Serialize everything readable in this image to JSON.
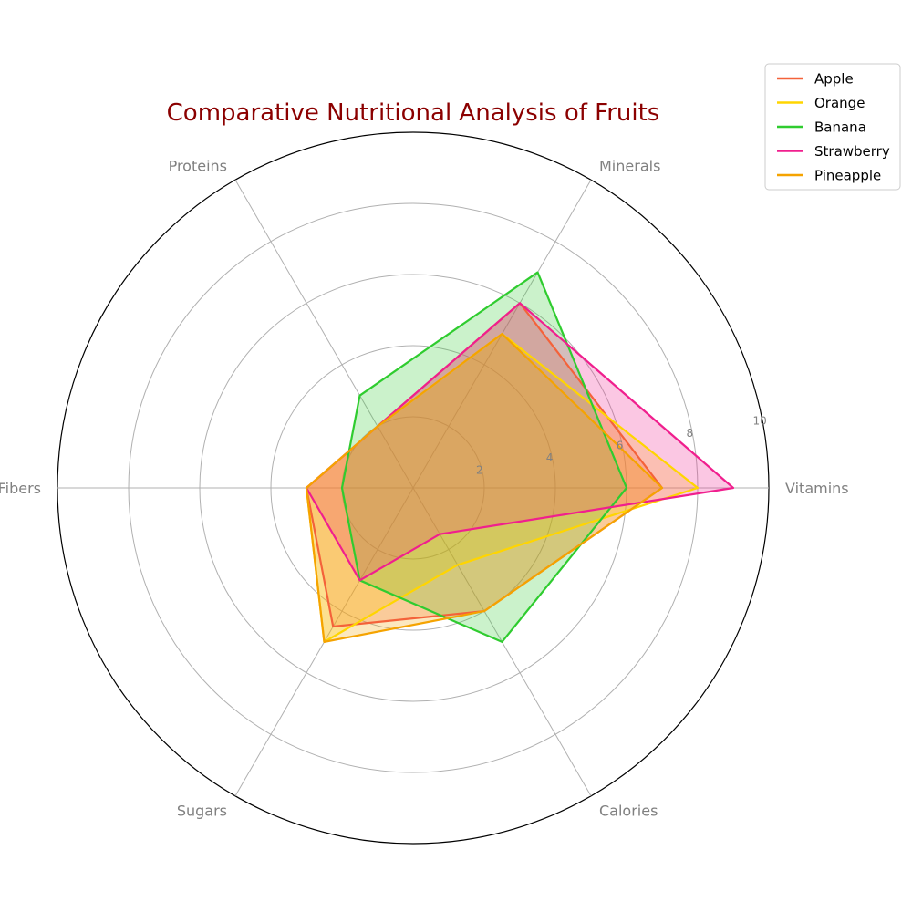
{
  "chart_data": {
    "type": "radar",
    "title": "Comparative Nutritional Analysis of Fruits",
    "axes": [
      "Vitamins",
      "Minerals",
      "Proteins",
      "Fibers",
      "Sugars",
      "Calories"
    ],
    "rlim": [
      0,
      10
    ],
    "rticks": [
      2,
      4,
      6,
      8,
      10
    ],
    "rtick_labels": [
      "2",
      "4",
      "6",
      "8",
      "10"
    ],
    "legend_position": "top-right",
    "grid": true,
    "series": [
      {
        "name": "Apple",
        "values": [
          7,
          6,
          2,
          3,
          4.5,
          4
        ],
        "color": "#f4623a"
      },
      {
        "name": "Orange",
        "values": [
          8,
          5,
          2,
          3,
          5,
          2.5
        ],
        "color": "#ffd500"
      },
      {
        "name": "Banana",
        "values": [
          6,
          7,
          3,
          2,
          3,
          5
        ],
        "color": "#2fcc2f"
      },
      {
        "name": "Strawberry",
        "values": [
          9,
          6,
          2,
          3,
          3,
          1.5
        ],
        "color": "#f01f8e"
      },
      {
        "name": "Pineapple",
        "values": [
          7,
          5,
          2,
          3,
          5,
          4
        ],
        "color": "#f5a300"
      }
    ]
  }
}
